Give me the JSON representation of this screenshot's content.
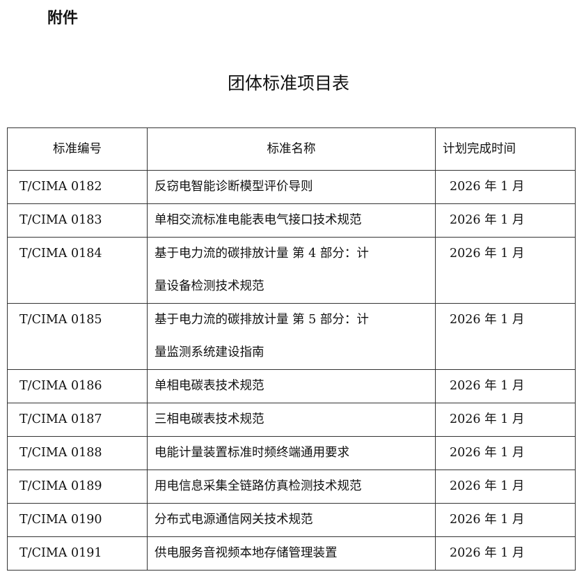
{
  "attachment_label": "附件",
  "title": "团体标准项目表",
  "table": {
    "headers": [
      "标准编号",
      "标准名称",
      "计划完成时间"
    ],
    "rows": [
      {
        "code": "T/CIMA 0182",
        "name": [
          "反窃电智能诊断模型评价导则"
        ],
        "date": "2026 年 1 月"
      },
      {
        "code": "T/CIMA 0183",
        "name": [
          "单相交流标准电能表电气接口技术规范"
        ],
        "date": "2026 年 1 月"
      },
      {
        "code": "T/CIMA 0184",
        "name": [
          "基于电力流的碳排放计量 第 4 部分：计",
          "量设备检测技术规范"
        ],
        "date": "2026 年 1 月"
      },
      {
        "code": "T/CIMA 0185",
        "name": [
          "基于电力流的碳排放计量 第 5 部分：计",
          "量监测系统建设指南"
        ],
        "date": "2026 年 1 月"
      },
      {
        "code": "T/CIMA 0186",
        "name": [
          "单相电碳表技术规范"
        ],
        "date": "2026 年 1 月"
      },
      {
        "code": "T/CIMA 0187",
        "name": [
          "三相电碳表技术规范"
        ],
        "date": "2026 年 1 月"
      },
      {
        "code": "T/CIMA 0188",
        "name": [
          "电能计量装置标准时频终端通用要求"
        ],
        "date": "2026 年 1 月"
      },
      {
        "code": "T/CIMA 0189",
        "name": [
          "用电信息采集全链路仿真检测技术规范"
        ],
        "date": "2026 年 1 月"
      },
      {
        "code": "T/CIMA 0190",
        "name": [
          "分布式电源通信网关技术规范"
        ],
        "date": "2026 年 1 月"
      },
      {
        "code": "T/CIMA 0191",
        "name": [
          "供电服务音视频本地存储管理装置"
        ],
        "date": "2026 年 1 月"
      }
    ]
  }
}
